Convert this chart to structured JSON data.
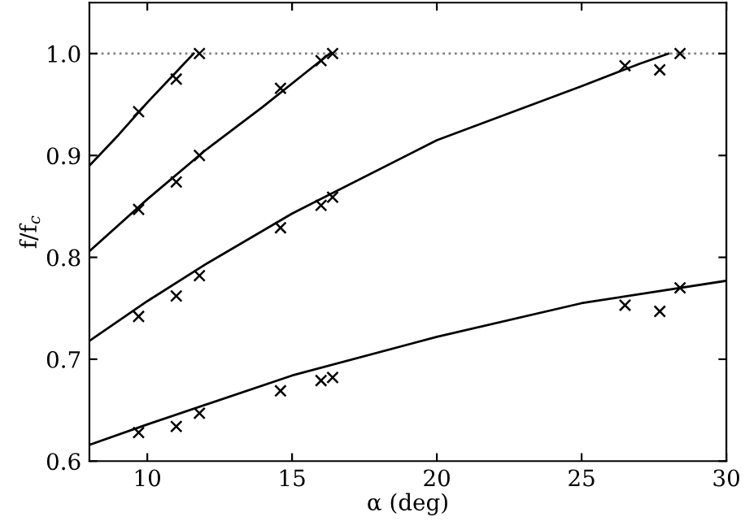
{
  "chart_data": {
    "type": "scatter",
    "xlabel": "α (deg)",
    "ylabel": "f/f$_{c}$",
    "xlim": [
      8,
      30
    ],
    "ylim": [
      0.6,
      1.05
    ],
    "xticks": [
      10,
      15,
      20,
      25,
      30
    ],
    "yticks": [
      0.6,
      0.7,
      0.8,
      0.9,
      {
        "value": 1.0,
        "label": "1.0"
      }
    ],
    "grid": false,
    "legend": false,
    "ref_lines": [
      {
        "axis": "y",
        "value": 1.0,
        "color": "#808080",
        "line_style": "dotted"
      }
    ],
    "series": [
      {
        "type": "line",
        "color": "#000000",
        "line_style": "solid",
        "marker": "none",
        "x": [
          8,
          9,
          10,
          11,
          11.6
        ],
        "values": [
          0.89,
          0.92,
          0.952,
          0.982,
          1.0
        ]
      },
      {
        "type": "line",
        "color": "#000000",
        "line_style": "solid",
        "marker": "none",
        "x": [
          8,
          10,
          12,
          14,
          15.5,
          16.3
        ],
        "values": [
          0.806,
          0.857,
          0.905,
          0.948,
          0.982,
          1.0
        ]
      },
      {
        "type": "line",
        "color": "#000000",
        "line_style": "solid",
        "marker": "none",
        "x": [
          8,
          10,
          12,
          15,
          20,
          25,
          27,
          28
        ],
        "values": [
          0.718,
          0.757,
          0.793,
          0.843,
          0.915,
          0.968,
          0.99,
          1.0
        ]
      },
      {
        "type": "line",
        "color": "#000000",
        "line_style": "solid",
        "marker": "none",
        "x": [
          8,
          10,
          15,
          20,
          25,
          30
        ],
        "values": [
          0.616,
          0.636,
          0.684,
          0.722,
          0.755,
          0.777
        ]
      },
      {
        "color": "#000000",
        "marker": "cross",
        "x": [
          9.7,
          11.0,
          11.8
        ],
        "values": [
          0.943,
          0.975,
          1.0
        ]
      },
      {
        "color": "#000000",
        "marker": "cross",
        "x": [
          9.7,
          11.0,
          11.8,
          14.6,
          16.0,
          16.4
        ],
        "values": [
          0.847,
          0.874,
          0.9,
          0.966,
          0.993,
          1.0
        ]
      },
      {
        "color": "#000000",
        "marker": "cross",
        "x": [
          9.7,
          11.0,
          11.8,
          14.6,
          16.0,
          16.4,
          26.5,
          27.7,
          28.4
        ],
        "values": [
          0.742,
          0.762,
          0.782,
          0.829,
          0.851,
          0.859,
          0.988,
          0.984,
          1.0
        ]
      },
      {
        "color": "#000000",
        "marker": "cross",
        "x": [
          9.7,
          11.0,
          11.8,
          14.6,
          16.0,
          16.4,
          26.5,
          27.7,
          28.4
        ],
        "values": [
          0.628,
          0.634,
          0.647,
          0.669,
          0.679,
          0.682,
          0.753,
          0.747,
          0.77
        ]
      }
    ]
  }
}
